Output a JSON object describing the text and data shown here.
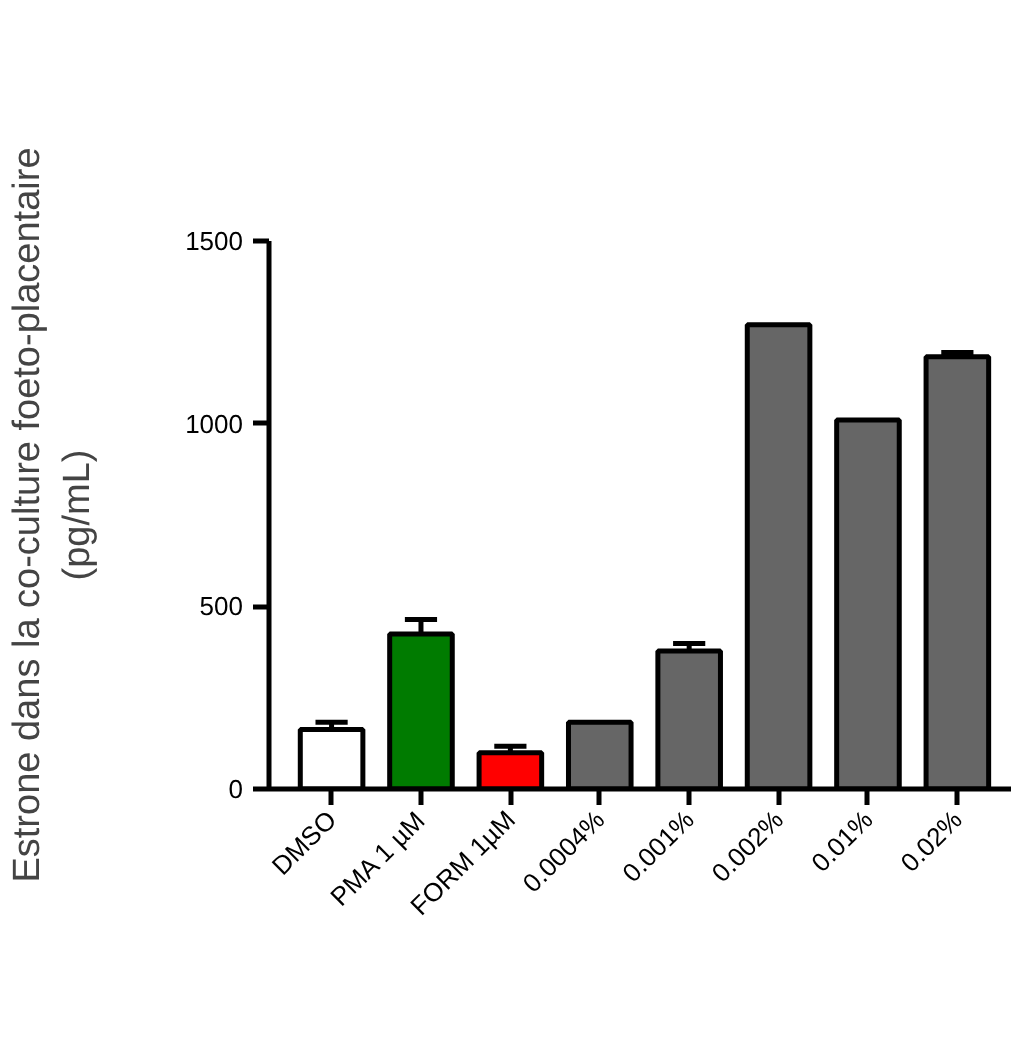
{
  "chart_data": {
    "type": "bar",
    "ylabel": "Estrone dans la co-culture foeto-placentaire\n(pg/mL)",
    "categories": [
      "DMSO",
      "PMA 1 µM",
      "FORM 1µM",
      "0.0004%",
      "0.001%",
      "0.002%",
      "0.01%",
      "0.02%"
    ],
    "values": [
      163,
      424,
      99,
      183,
      378,
      1271,
      1010,
      1183
    ],
    "colors": [
      "#ffffff",
      "#007b00",
      "#ff0000",
      "#666666",
      "#666666",
      "#666666",
      "#666666",
      "#666666"
    ],
    "errors": [
      [
        163,
        183
      ],
      [
        424,
        464
      ],
      [
        99,
        117
      ],
      null,
      [
        378,
        398
      ],
      null,
      null,
      [
        1183,
        1195
      ]
    ],
    "ylim": [
      0,
      1500
    ],
    "yticks": [
      0,
      500,
      1000,
      1500
    ],
    "grid": false
  }
}
